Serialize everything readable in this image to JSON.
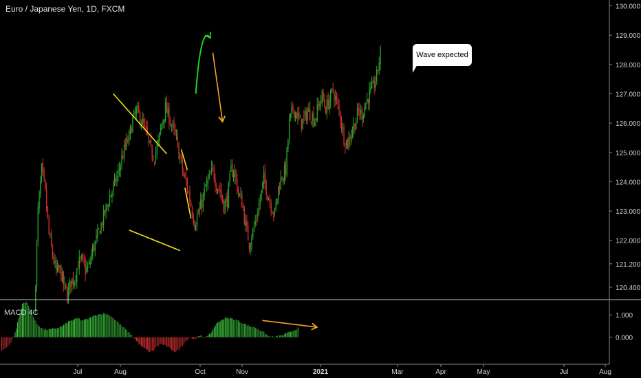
{
  "header": {
    "title": "Euro / Japanese Yen, 1D, FXCM"
  },
  "annotation": {
    "text": "Wave expected"
  },
  "indicator": {
    "name": "MACD 4C"
  },
  "colors": {
    "background": "#000000",
    "candle_up": "#26a32a",
    "candle_down": "#d32f2f",
    "macd_up": "#3ec43e",
    "macd_down": "#d32f2f",
    "trendline_yellow": "#f5e21a",
    "arrow_green": "#1fd21f",
    "arrow_orange": "#f5a623",
    "axis_text": "#d1d4dc",
    "separator": "#bfbfbf"
  },
  "chart_data": [
    {
      "type": "candlestick",
      "title": "Euro / Japanese Yen, 1D, FXCM",
      "ylim": [
        120.0,
        130.2
      ],
      "y_ticks": [
        "130.000",
        "129.000",
        "128.000",
        "127.000",
        "126.000",
        "125.000",
        "124.000",
        "123.000",
        "122.000",
        "121.200",
        "120.400"
      ],
      "x_ticks": [
        "Jul",
        "Aug",
        "Oct",
        "Nov",
        "2021",
        "Mar",
        "Apr",
        "May",
        "Jul",
        "Aug"
      ],
      "path": [
        [
          0,
          119.5
        ],
        [
          3,
          123.0
        ],
        [
          6,
          124.4
        ],
        [
          9,
          123.6
        ],
        [
          12,
          122.2
        ],
        [
          15,
          121.5
        ],
        [
          18,
          120.9
        ],
        [
          21,
          121.0
        ],
        [
          24,
          120.5
        ],
        [
          27,
          120.1
        ],
        [
          30,
          120.6
        ],
        [
          33,
          120.7
        ],
        [
          36,
          121.2
        ],
        [
          39,
          121.3
        ],
        [
          42,
          121.0
        ],
        [
          45,
          121.1
        ],
        [
          48,
          121.7
        ],
        [
          51,
          122.0
        ],
        [
          54,
          122.4
        ],
        [
          57,
          122.8
        ],
        [
          60,
          123.2
        ],
        [
          63,
          123.6
        ],
        [
          66,
          123.9
        ],
        [
          69,
          124.3
        ],
        [
          72,
          124.8
        ],
        [
          75,
          125.2
        ],
        [
          78,
          125.5
        ],
        [
          81,
          126.1
        ],
        [
          84,
          126.4
        ],
        [
          87,
          126.2
        ],
        [
          90,
          125.9
        ],
        [
          93,
          125.5
        ],
        [
          96,
          125.0
        ],
        [
          99,
          124.9
        ],
        [
          102,
          125.3
        ],
        [
          105,
          126.0
        ],
        [
          108,
          126.5
        ],
        [
          111,
          126.2
        ],
        [
          114,
          125.8
        ],
        [
          117,
          125.4
        ],
        [
          120,
          124.8
        ],
        [
          123,
          124.2
        ],
        [
          126,
          123.8
        ],
        [
          129,
          123.2
        ],
        [
          132,
          122.6
        ],
        [
          135,
          122.9
        ],
        [
          138,
          123.3
        ],
        [
          141,
          123.8
        ],
        [
          144,
          124.1
        ],
        [
          147,
          124.4
        ],
        [
          150,
          123.9
        ],
        [
          153,
          123.7
        ],
        [
          156,
          123.2
        ],
        [
          159,
          123.4
        ],
        [
          162,
          124.4
        ],
        [
          165,
          124.3
        ],
        [
          168,
          123.6
        ],
        [
          171,
          123.3
        ],
        [
          174,
          122.5
        ],
        [
          177,
          121.9
        ],
        [
          180,
          122.3
        ],
        [
          183,
          122.8
        ],
        [
          186,
          123.4
        ],
        [
          189,
          124.1
        ],
        [
          192,
          123.6
        ],
        [
          195,
          123.2
        ],
        [
          198,
          122.9
        ],
        [
          201,
          123.8
        ],
        [
          204,
          124.2
        ],
        [
          207,
          124.4
        ],
        [
          210,
          126.0
        ],
        [
          213,
          126.5
        ],
        [
          216,
          126.3
        ],
        [
          219,
          126.0
        ],
        [
          222,
          126.1
        ],
        [
          225,
          126.4
        ],
        [
          228,
          126.3
        ],
        [
          231,
          126.1
        ],
        [
          234,
          126.6
        ],
        [
          237,
          126.9
        ],
        [
          240,
          126.5
        ],
        [
          243,
          126.8
        ],
        [
          246,
          127.1
        ],
        [
          249,
          126.7
        ],
        [
          252,
          126.2
        ],
        [
          255,
          125.5
        ],
        [
          258,
          125.3
        ],
        [
          261,
          125.7
        ],
        [
          264,
          126.0
        ],
        [
          267,
          126.4
        ],
        [
          270,
          126.3
        ],
        [
          273,
          126.7
        ],
        [
          276,
          127.0
        ],
        [
          279,
          127.2
        ],
        [
          282,
          127.6
        ],
        [
          285,
          128.4
        ]
      ],
      "trendlines": [
        {
          "color": "yellow",
          "from": [
            65,
            127.0
          ],
          "to": [
            109,
            124.95
          ]
        },
        {
          "color": "yellow",
          "from": [
            78,
            122.35
          ],
          "to": [
            120,
            121.65
          ]
        },
        {
          "color": "yellow",
          "from": [
            121,
            125.1
          ],
          "to": [
            126,
            124.4
          ]
        },
        {
          "color": "yellow",
          "from": [
            124,
            123.8
          ],
          "to": [
            129,
            122.75
          ]
        }
      ],
      "projection": [
        {
          "color": "green",
          "type": "arc",
          "from": [
            133,
            127.0
          ],
          "to": [
            145,
            128.9
          ]
        },
        {
          "color": "orange",
          "type": "line",
          "from": [
            147,
            128.4
          ],
          "to": [
            155,
            126.05
          ]
        }
      ]
    },
    {
      "type": "bar",
      "title": "MACD 4C",
      "ylim": [
        -0.9,
        1.65
      ],
      "y_ticks": [
        "1.000",
        "0.000"
      ],
      "path": [
        [
          0,
          -0.6
        ],
        [
          4,
          -0.45
        ],
        [
          8,
          -0.2
        ],
        [
          11,
          0.2
        ],
        [
          14,
          0.85
        ],
        [
          17,
          1.5
        ],
        [
          20,
          1.6
        ],
        [
          23,
          1.3
        ],
        [
          26,
          0.9
        ],
        [
          29,
          0.6
        ],
        [
          32,
          0.45
        ],
        [
          35,
          0.35
        ],
        [
          40,
          0.35
        ],
        [
          45,
          0.4
        ],
        [
          50,
          0.5
        ],
        [
          55,
          0.7
        ],
        [
          60,
          0.8
        ],
        [
          63,
          0.85
        ],
        [
          66,
          0.75
        ],
        [
          70,
          0.8
        ],
        [
          74,
          0.9
        ],
        [
          78,
          1.0
        ],
        [
          82,
          1.05
        ],
        [
          86,
          1.05
        ],
        [
          90,
          0.95
        ],
        [
          94,
          0.75
        ],
        [
          98,
          0.55
        ],
        [
          102,
          0.35
        ],
        [
          106,
          0.15
        ],
        [
          110,
          -0.1
        ],
        [
          113,
          -0.3
        ],
        [
          116,
          -0.45
        ],
        [
          119,
          -0.55
        ],
        [
          122,
          -0.65
        ],
        [
          125,
          -0.6
        ],
        [
          128,
          -0.4
        ],
        [
          131,
          -0.3
        ],
        [
          134,
          -0.35
        ],
        [
          137,
          -0.45
        ],
        [
          140,
          -0.55
        ],
        [
          143,
          -0.65
        ],
        [
          146,
          -0.55
        ],
        [
          149,
          -0.35
        ],
        [
          152,
          -0.15
        ],
        [
          155,
          0.0
        ],
        [
          158,
          -0.1
        ],
        [
          161,
          0.0
        ],
        [
          164,
          0.05
        ],
        [
          167,
          0.0
        ],
        [
          170,
          0.05
        ],
        [
          173,
          0.25
        ],
        [
          176,
          0.55
        ],
        [
          180,
          0.75
        ],
        [
          184,
          0.85
        ],
        [
          188,
          0.85
        ],
        [
          192,
          0.8
        ],
        [
          196,
          0.7
        ],
        [
          200,
          0.6
        ],
        [
          204,
          0.5
        ],
        [
          208,
          0.45
        ],
        [
          212,
          0.35
        ],
        [
          216,
          0.2
        ],
        [
          220,
          0.05
        ],
        [
          224,
          0.0
        ],
        [
          228,
          0.05
        ],
        [
          232,
          0.1
        ],
        [
          236,
          0.2
        ],
        [
          240,
          0.3
        ],
        [
          244,
          0.4
        ]
      ],
      "trendline": {
        "color": "orange",
        "from": [
          215,
          0.75
        ],
        "to": [
          260,
          0.45
        ]
      }
    }
  ]
}
